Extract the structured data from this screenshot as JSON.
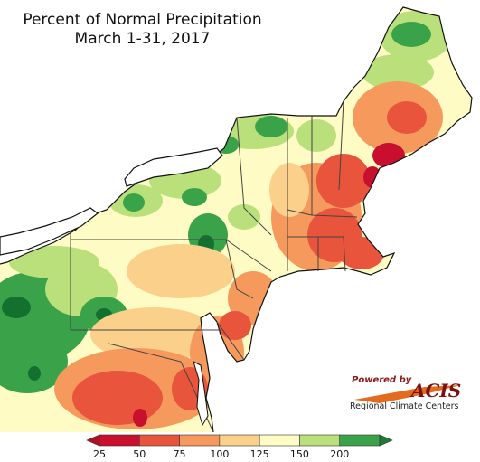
{
  "title": {
    "line1": "Percent of Normal Precipitation",
    "line2": "March 1-31, 2017"
  },
  "logo": {
    "powered_by": "Powered by",
    "name": "ACIS",
    "subtitle": "Regional Climate Centers"
  },
  "legend": {
    "labels": [
      "25",
      "50",
      "75",
      "100",
      "125",
      "150",
      "200"
    ],
    "bins": [
      {
        "color": "#c8102e"
      },
      {
        "color": "#e8543c"
      },
      {
        "color": "#f59a5c"
      },
      {
        "color": "#fbd08a"
      },
      {
        "color": "#fefcc4"
      },
      {
        "color": "#b9e07a"
      },
      {
        "color": "#3aa34a"
      }
    ],
    "low_arrow_color": "#b00f22",
    "high_arrow_color": "#1f7a34"
  },
  "colors": {
    "dark_red": "#c8102e",
    "red": "#e8543c",
    "orange": "#f59a5c",
    "light_orange": "#fbd08a",
    "pale_yellow": "#fefcc4",
    "light_green": "#b9e07a",
    "green": "#3aa34a",
    "dark_green": "#14702f",
    "water": "#ffffff"
  }
}
